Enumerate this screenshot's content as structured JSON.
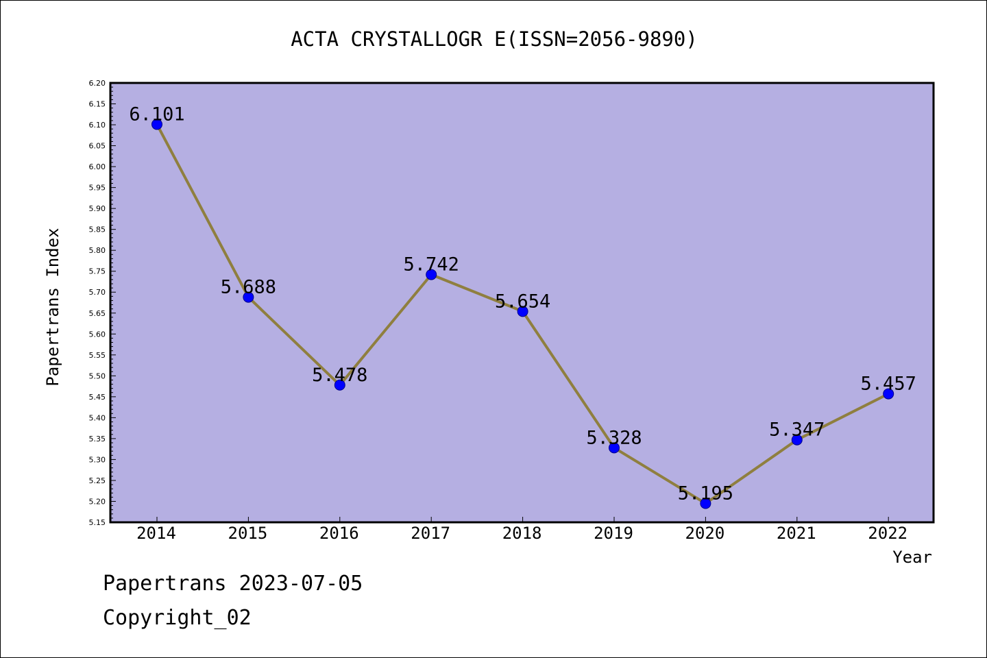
{
  "footer": {
    "line1": "Papertrans 2023-07-05",
    "line2": "Copyright_02"
  },
  "colors": {
    "plot_background": "#b5afe2",
    "line": "#8f7f3f",
    "marker": "#0000ff",
    "marker_edge": "#00008b"
  },
  "chart_data": {
    "type": "line",
    "title": "ACTA CRYSTALLOGR E(ISSN=2056-9890)",
    "xlabel": "Year",
    "ylabel": "Papertrans Index",
    "categories": [
      "2014",
      "2015",
      "2016",
      "2017",
      "2018",
      "2019",
      "2020",
      "2021",
      "2022"
    ],
    "values": [
      6.101,
      5.688,
      5.478,
      5.742,
      5.654,
      5.328,
      5.195,
      5.347,
      5.457
    ],
    "data_labels": [
      "6.101",
      "5.688",
      "5.478",
      "5.742",
      "5.654",
      "5.328",
      "5.195",
      "5.347",
      "5.457"
    ],
    "ylim": [
      5.15,
      6.2
    ],
    "yticks": [
      "5.15",
      "5.20",
      "5.25",
      "5.30",
      "5.35",
      "5.40",
      "5.45",
      "5.50",
      "5.55",
      "5.60",
      "5.65",
      "5.70",
      "5.75",
      "5.80",
      "5.85",
      "5.90",
      "5.95",
      "6.00",
      "6.05",
      "6.10",
      "6.15",
      "6.20"
    ],
    "grid": false,
    "legend": "none"
  }
}
